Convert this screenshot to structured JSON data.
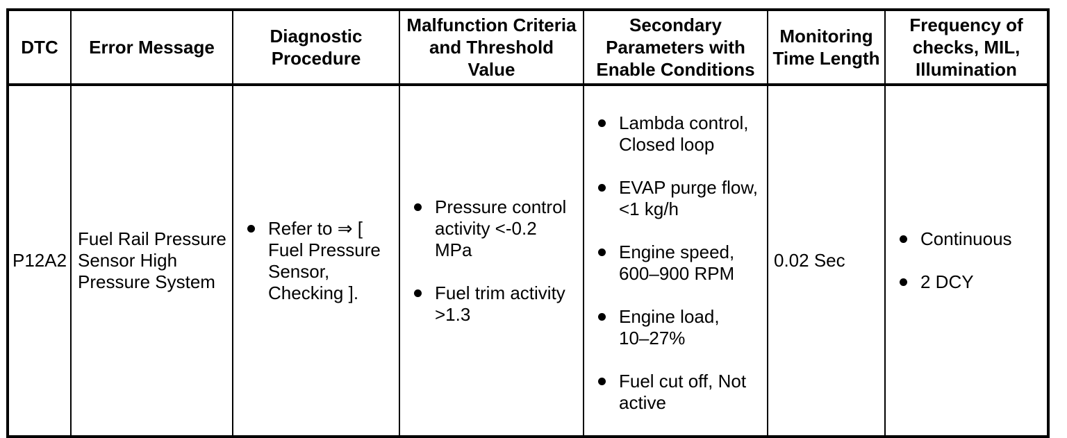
{
  "colors": {
    "border": "#000000",
    "background": "#ffffff",
    "text": "#000000"
  },
  "table": {
    "columns": [
      "DTC",
      "Error Message",
      "Diagnostic\nProcedure",
      "Malfunction Criteria\nand Threshold\nValue",
      "Secondary\nParameters with\nEnable Conditions",
      "Monitoring\nTime Length",
      "Frequency of\nchecks, MIL,\nIllumination"
    ],
    "row": {
      "dtc": "P12A2",
      "error_message": "Fuel Rail Pressure\nSensor High\nPressure System",
      "diagnostic_procedure": [
        "Refer to ⇒ [\nFuel Pressure\nSensor,\nChecking ]."
      ],
      "malfunction_criteria": [
        "Pressure control\nactivity <-0.2\nMPa",
        "Fuel trim activity\n>1.3"
      ],
      "secondary_parameters": [
        "Lambda control,\nClosed loop",
        "EVAP purge flow,\n<1 kg/h",
        "Engine speed,\n600–900 RPM",
        "Engine load,\n10–27%",
        "Fuel cut off, Not\nactive"
      ],
      "monitoring_time": "0.02 Sec",
      "frequency": [
        "Continuous",
        "2 DCY"
      ]
    }
  }
}
